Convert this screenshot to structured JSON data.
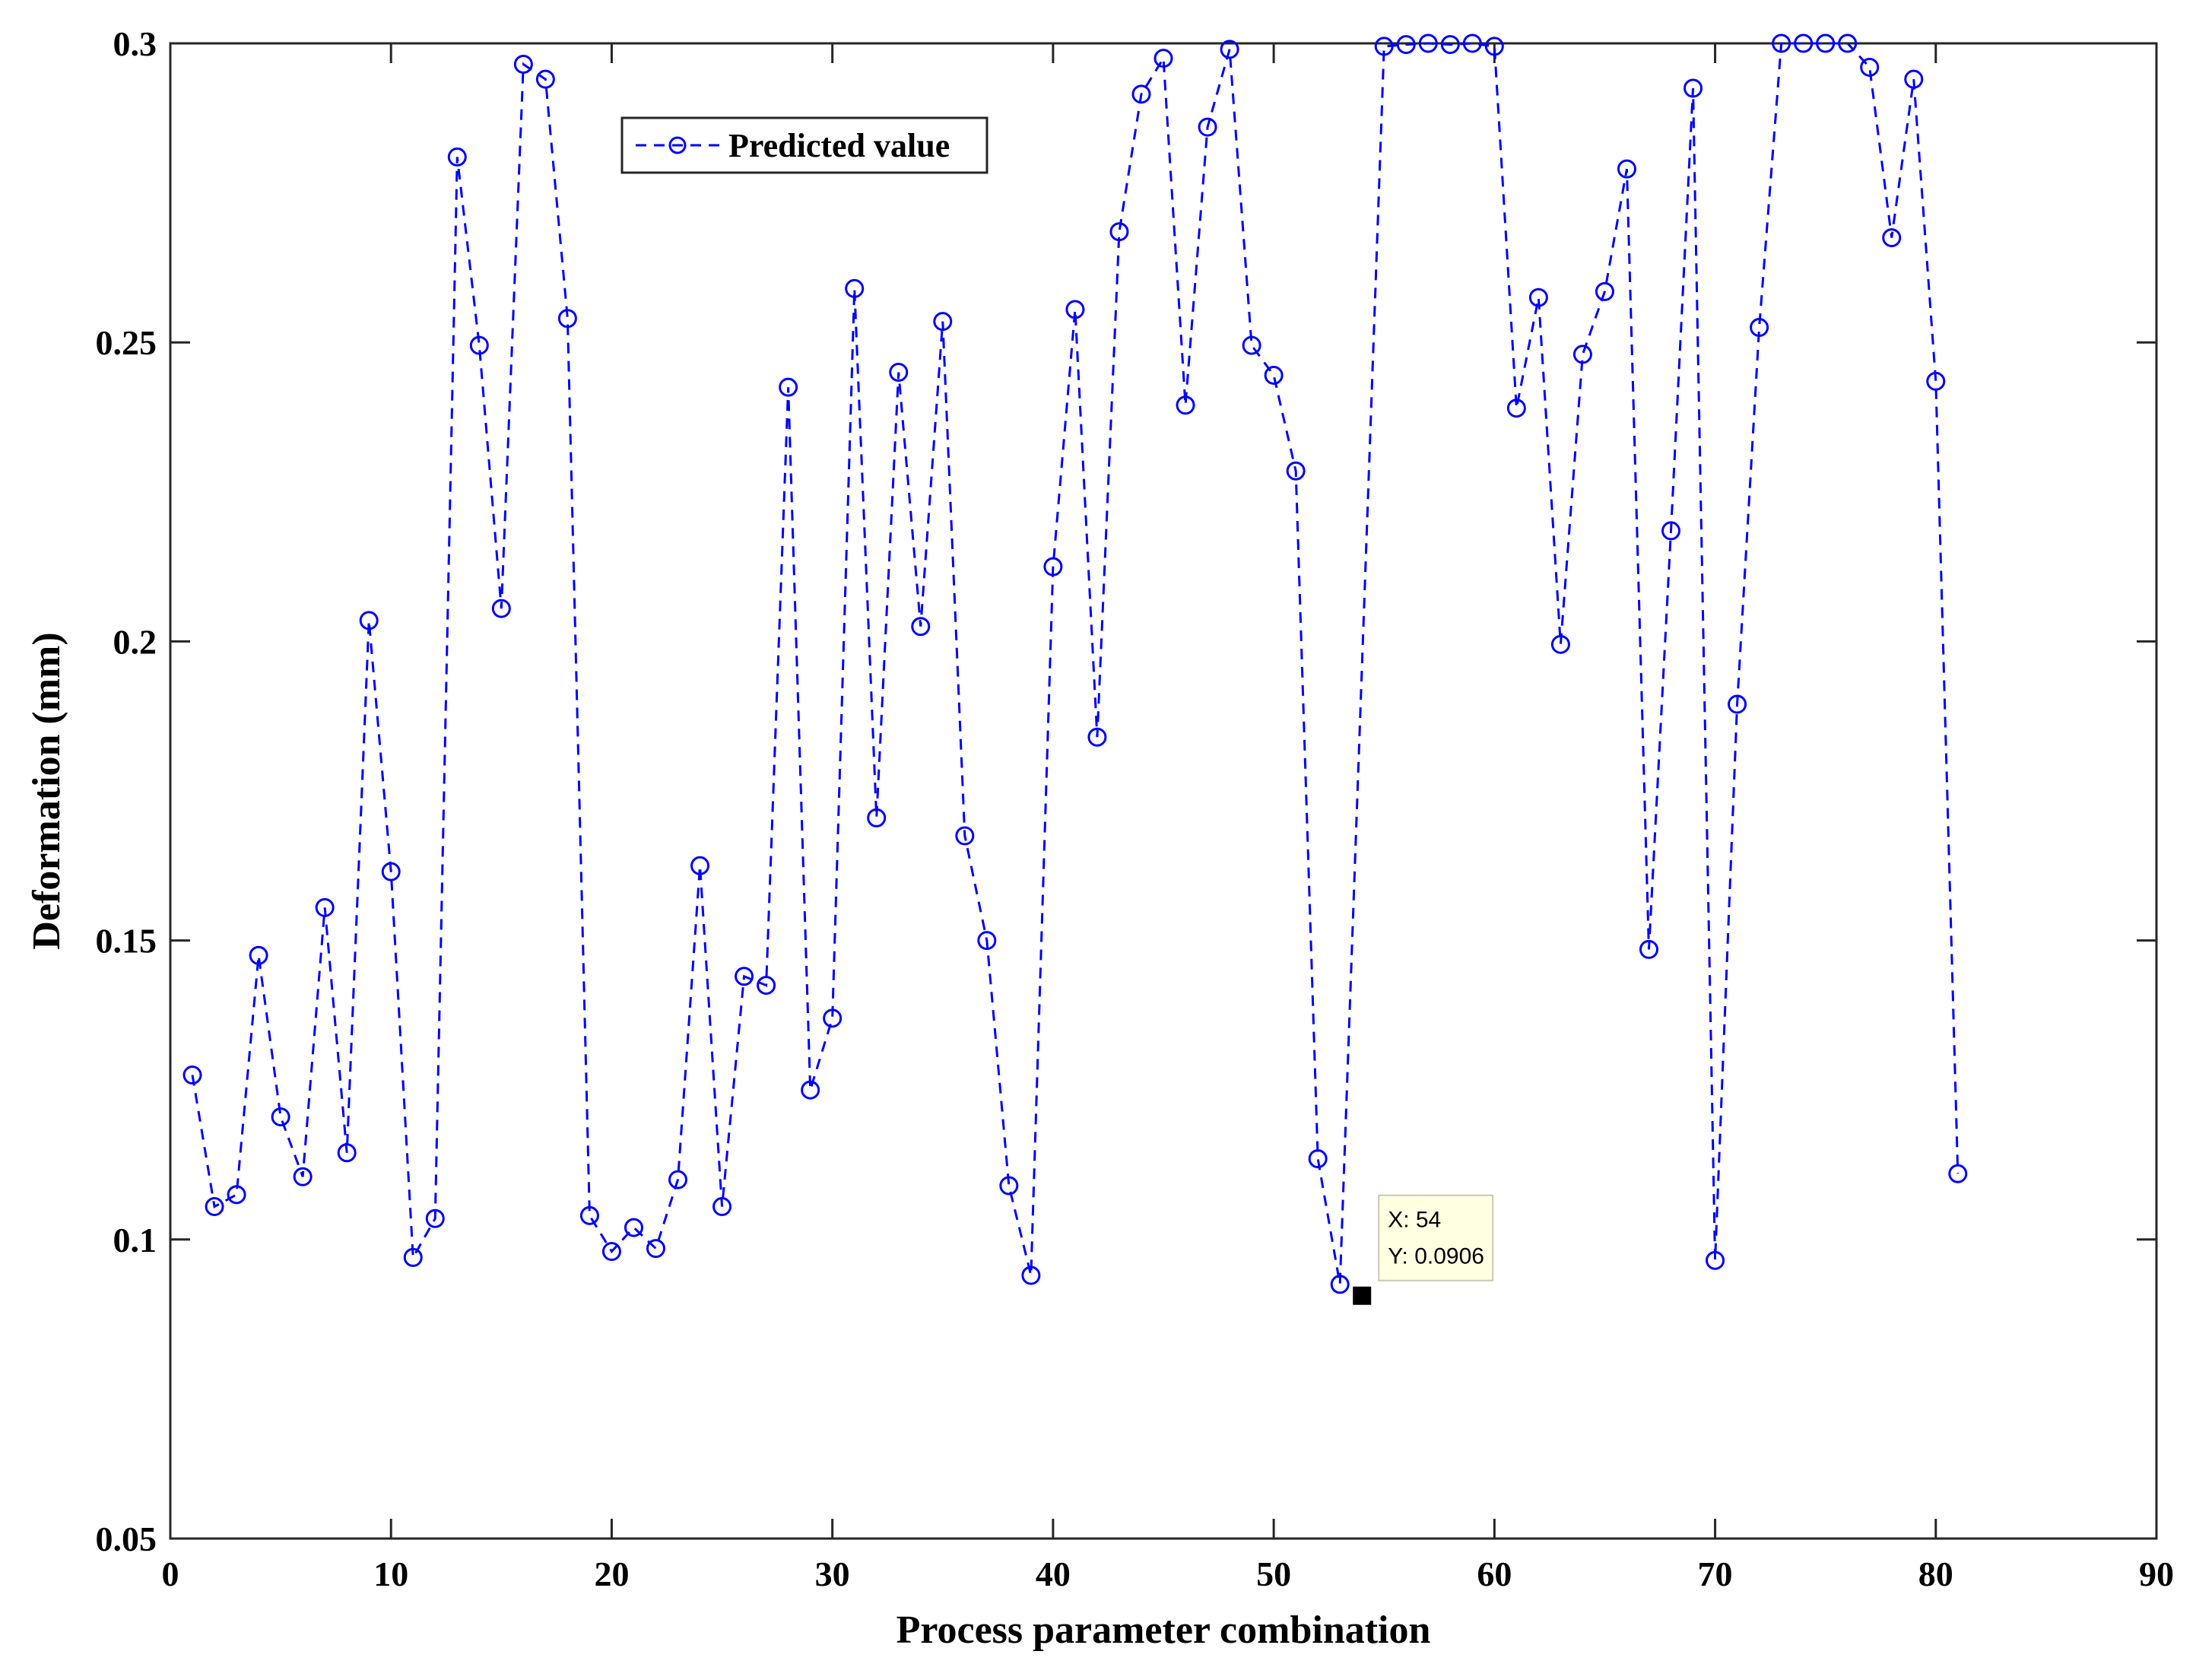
{
  "chart_data": {
    "type": "line",
    "xlabel": "Process parameter combination",
    "ylabel": "Deformation (mm)",
    "xlim": [
      0,
      90
    ],
    "ylim": [
      0.05,
      0.3
    ],
    "x_ticks": [
      0,
      10,
      20,
      30,
      40,
      50,
      60,
      70,
      80,
      90
    ],
    "y_ticks": [
      0.05,
      0.1,
      0.15,
      0.2,
      0.25,
      0.3
    ],
    "x_tick_labels": [
      "0",
      "10",
      "20",
      "30",
      "40",
      "50",
      "60",
      "70",
      "80",
      "90"
    ],
    "y_tick_labels": [
      "0.05",
      "0.1",
      "0.15",
      "0.2",
      "0.25",
      "0.3"
    ],
    "grid": false,
    "legend_position": "top-left",
    "series": [
      {
        "name": "Predicted value",
        "color": "#0000ff",
        "line_style": "dashed",
        "marker": "circle",
        "x": [
          1,
          2,
          3,
          4,
          5,
          6,
          7,
          8,
          9,
          10,
          11,
          12,
          13,
          14,
          15,
          16,
          17,
          18,
          19,
          20,
          21,
          22,
          23,
          24,
          25,
          26,
          27,
          28,
          29,
          30,
          31,
          32,
          33,
          34,
          35,
          36,
          37,
          38,
          39,
          40,
          41,
          42,
          43,
          44,
          45,
          46,
          47,
          48,
          49,
          50,
          51,
          52,
          53,
          55,
          56,
          57,
          58,
          59,
          60,
          61,
          62,
          63,
          64,
          65,
          66,
          67,
          68,
          69,
          70,
          71,
          72,
          73,
          74,
          75,
          76,
          77,
          78,
          79,
          80,
          81
        ],
        "values": [
          0.1275,
          0.1055,
          0.1075,
          0.1475,
          0.1205,
          0.1105,
          0.1555,
          0.1145,
          0.2035,
          0.1615,
          0.097,
          0.1035,
          0.281,
          0.2495,
          0.2055,
          0.2965,
          0.294,
          0.254,
          0.104,
          0.098,
          0.102,
          0.0985,
          0.11,
          0.1625,
          0.1055,
          0.144,
          0.1425,
          0.2425,
          0.125,
          0.137,
          0.259,
          0.1705,
          0.245,
          0.2025,
          0.2535,
          0.1675,
          0.15,
          0.109,
          0.094,
          0.2125,
          0.2555,
          0.184,
          0.2685,
          0.2915,
          0.2975,
          0.2395,
          0.286,
          0.299,
          0.2495,
          0.2445,
          0.2285,
          0.1135,
          0.0925,
          0.2995,
          0.2998,
          0.3,
          0.2998,
          0.3,
          0.2995,
          0.239,
          0.2575,
          0.1995,
          0.248,
          0.2585,
          0.279,
          0.1485,
          0.2185,
          0.2925,
          0.0965,
          0.1895,
          0.2525,
          0.3,
          0.3,
          0.3,
          0.3,
          0.296,
          0.2675,
          0.294,
          0.2435,
          0.111
        ]
      }
    ],
    "datatip": {
      "x": 54,
      "y": 0.0906,
      "x_text": "X: 54",
      "y_text": "Y: 0.0906"
    }
  }
}
